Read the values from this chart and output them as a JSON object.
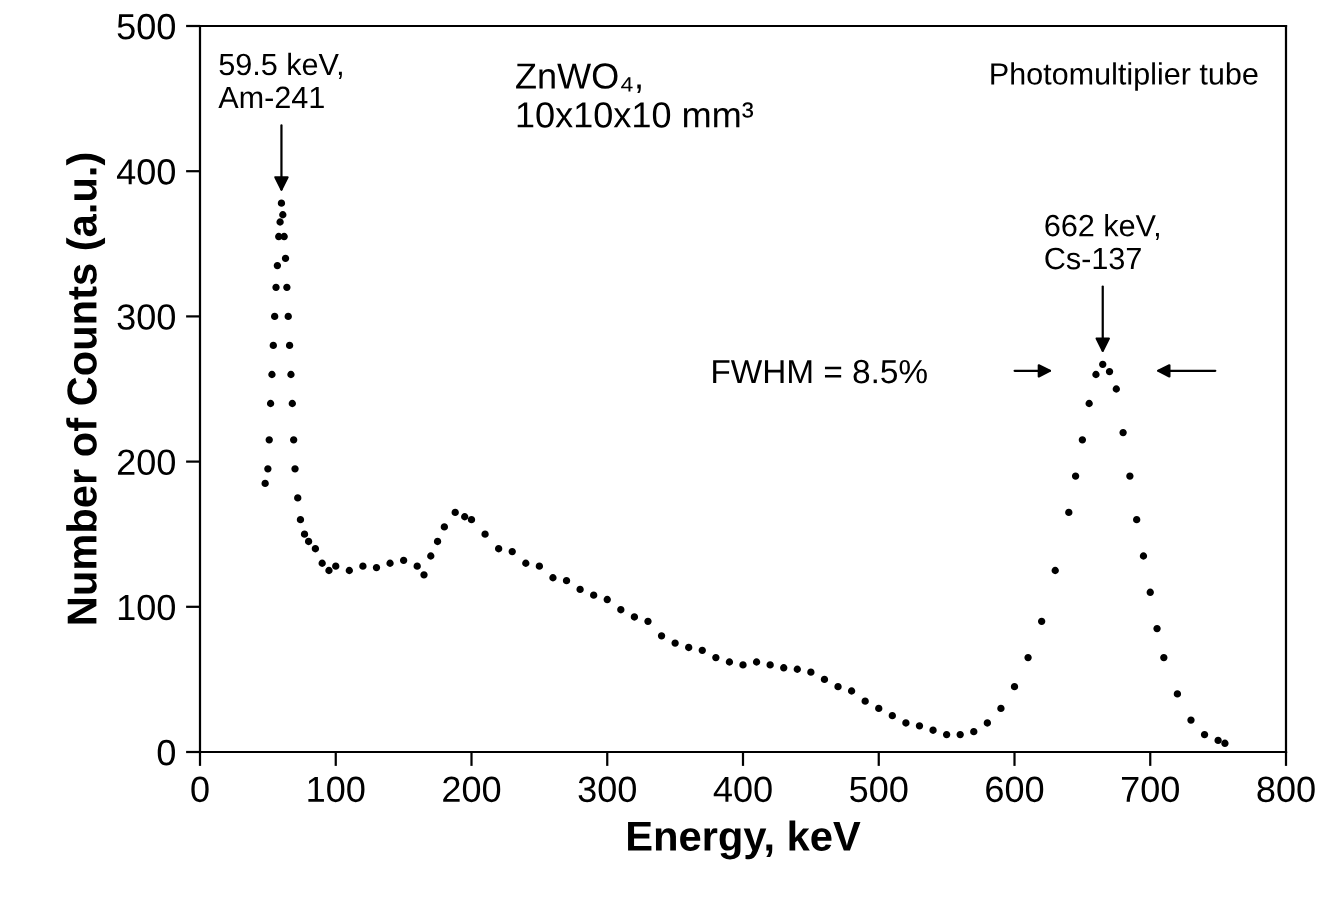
{
  "chart_data": {
    "type": "scatter",
    "xlabel": "Energy, keV",
    "ylabel": "Number of Counts (a.u.)",
    "xlim": [
      0,
      800
    ],
    "ylim": [
      0,
      500
    ],
    "xticks": [
      0,
      100,
      200,
      300,
      400,
      500,
      600,
      700,
      800
    ],
    "yticks": [
      0,
      100,
      200,
      300,
      400,
      500
    ],
    "grid": false,
    "marker": "circle",
    "series": [
      {
        "color": "#000000",
        "x": [
          48,
          50,
          51,
          52,
          53,
          54,
          55,
          56,
          57,
          58,
          59,
          60,
          61,
          62,
          63,
          64,
          65,
          66,
          67,
          68,
          69,
          70,
          72,
          74,
          77,
          80,
          85,
          90,
          95,
          100,
          110,
          120,
          130,
          140,
          150,
          160,
          165,
          170,
          175,
          180,
          188,
          195,
          200,
          210,
          220,
          230,
          240,
          250,
          260,
          270,
          280,
          290,
          300,
          310,
          320,
          330,
          340,
          350,
          360,
          370,
          380,
          390,
          400,
          410,
          420,
          430,
          440,
          450,
          460,
          470,
          480,
          490,
          500,
          510,
          520,
          530,
          540,
          550,
          560,
          570,
          580,
          590,
          600,
          610,
          620,
          630,
          640,
          645,
          650,
          655,
          660,
          665,
          670,
          675,
          680,
          685,
          690,
          695,
          700,
          705,
          710,
          720,
          730,
          740,
          750,
          755
        ],
        "values": [
          185,
          195,
          215,
          240,
          260,
          280,
          300,
          320,
          335,
          355,
          365,
          378,
          370,
          355,
          340,
          320,
          300,
          280,
          260,
          240,
          215,
          195,
          175,
          160,
          150,
          145,
          140,
          130,
          125,
          128,
          125,
          128,
          127,
          130,
          132,
          128,
          122,
          135,
          145,
          155,
          165,
          162,
          160,
          150,
          140,
          138,
          130,
          128,
          120,
          118,
          112,
          108,
          105,
          98,
          93,
          90,
          80,
          75,
          72,
          70,
          65,
          62,
          60,
          62,
          60,
          58,
          57,
          55,
          50,
          45,
          42,
          35,
          30,
          25,
          20,
          18,
          15,
          12,
          12,
          14,
          20,
          30,
          45,
          65,
          90,
          125,
          165,
          190,
          215,
          240,
          260,
          267,
          262,
          250,
          220,
          190,
          160,
          135,
          110,
          85,
          65,
          40,
          22,
          12,
          8,
          6
        ]
      }
    ],
    "annotations": [
      {
        "text": "59.5 keV,\nAm-241",
        "x": 60,
        "y": 378
      },
      {
        "text": "662 keV,\nCs-137",
        "x": 665,
        "y": 267
      },
      "FWHM = 8.5%",
      "ZnWO₄,\n10x10x10 mm³",
      "Photomultiplier tube"
    ]
  }
}
